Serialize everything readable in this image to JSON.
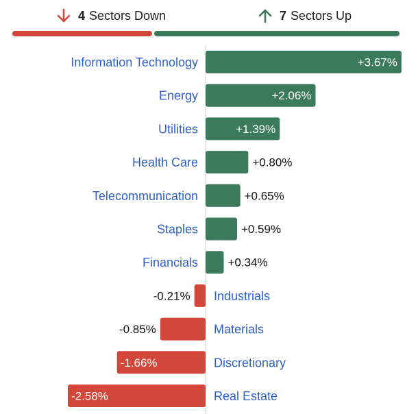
{
  "summary": {
    "down": {
      "count": "4",
      "label": "Sectors Down",
      "color": "#d2473a",
      "icon": "arrow-down-icon"
    },
    "up": {
      "count": "7",
      "label": "Sectors Up",
      "color": "#3b7a5b",
      "icon": "arrow-up-icon"
    }
  },
  "colors": {
    "positive": "#3b7a5b",
    "negative": "#d2473a",
    "label": "#2f5fc8",
    "axis": "#dddddd"
  },
  "chart_data": {
    "type": "bar",
    "orientation": "horizontal",
    "categories": [
      "Information Technology",
      "Energy",
      "Utilities",
      "Health Care",
      "Telecommunication",
      "Staples",
      "Financials",
      "Industrials",
      "Materials",
      "Discretionary",
      "Real Estate"
    ],
    "values": [
      3.67,
      2.06,
      1.39,
      0.8,
      0.65,
      0.59,
      0.34,
      -0.21,
      -0.85,
      -1.66,
      -2.58
    ],
    "value_labels": [
      "+3.67%",
      "+2.06%",
      "+1.39%",
      "+0.80%",
      "+0.65%",
      "+0.59%",
      "+0.34%",
      "-0.21%",
      "-0.85%",
      "-1.66%",
      "-2.58%"
    ],
    "xlim": [
      -2.58,
      3.67
    ],
    "grid": false,
    "legend": "none"
  }
}
